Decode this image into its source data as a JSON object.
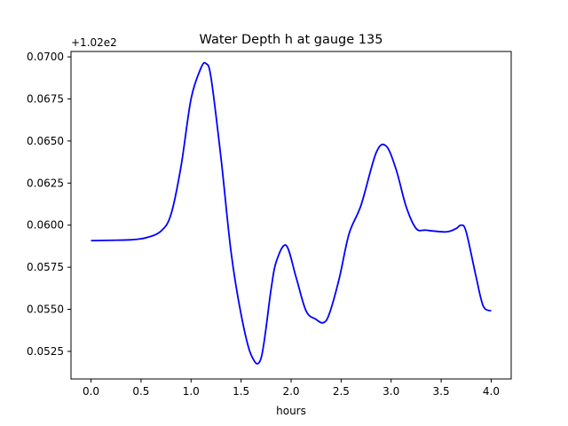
{
  "chart_data": {
    "type": "line",
    "title": "Water Depth h at gauge 135",
    "xlabel": "hours",
    "ylabel": "",
    "y_offset_label": "+1.02e2",
    "xlim": [
      -0.2,
      4.2
    ],
    "ylim": [
      0.05086,
      0.07032
    ],
    "grid": false,
    "x_ticks": [
      0.0,
      0.5,
      1.0,
      1.5,
      2.0,
      2.5,
      3.0,
      3.5,
      4.0
    ],
    "x_tick_labels": [
      "0.0",
      "0.5",
      "1.0",
      "1.5",
      "2.0",
      "2.5",
      "3.0",
      "3.5",
      "4.0"
    ],
    "y_ticks": [
      0.0525,
      0.055,
      0.0575,
      0.06,
      0.0625,
      0.065,
      0.0675,
      0.07
    ],
    "y_tick_labels": [
      "0.0525",
      "0.0550",
      "0.0575",
      "0.0600",
      "0.0625",
      "0.0650",
      "0.0675",
      "0.0700"
    ],
    "series": [
      {
        "color": "#0000ff",
        "x": [
          0.0,
          0.2,
          0.4,
          0.55,
          0.7,
          0.8,
          0.9,
          1.0,
          1.1,
          1.15,
          1.2,
          1.3,
          1.4,
          1.5,
          1.6,
          1.7,
          1.8,
          1.85,
          1.95,
          2.05,
          2.15,
          2.25,
          2.32,
          2.38,
          2.48,
          2.58,
          2.7,
          2.85,
          2.95,
          3.05,
          3.15,
          3.25,
          3.35,
          3.55,
          3.65,
          3.7,
          3.75,
          3.85,
          3.92,
          4.0
        ],
        "y": [
          0.05908,
          0.0591,
          0.05913,
          0.05925,
          0.05965,
          0.06065,
          0.0635,
          0.0675,
          0.06935,
          0.0696,
          0.06875,
          0.06395,
          0.0584,
          0.0547,
          0.0523,
          0.0521,
          0.0562,
          0.0578,
          0.0588,
          0.0569,
          0.0549,
          0.0544,
          0.0542,
          0.0547,
          0.0568,
          0.0595,
          0.0612,
          0.0643,
          0.0647,
          0.0633,
          0.0611,
          0.0598,
          0.0597,
          0.0596,
          0.0598,
          0.06,
          0.0596,
          0.0569,
          0.0552,
          0.0549
        ]
      }
    ]
  }
}
